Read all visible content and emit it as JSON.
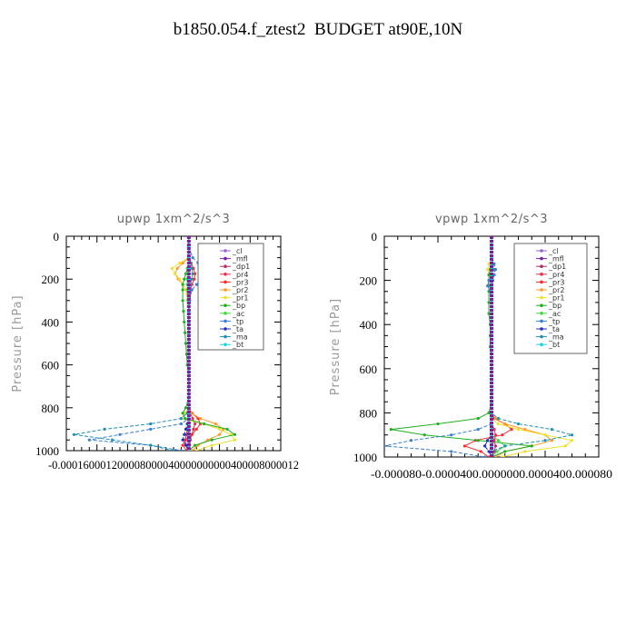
{
  "title": "b1850.054.f_ztest2  BUDGET at90E,10N",
  "legend_entries": [
    "_cl",
    "_mfl",
    "_dp1",
    "_pr4",
    "_pr3",
    "_pr2",
    "_pr1",
    "_bp",
    "_ac",
    "_tp",
    "_ta",
    "_ma",
    "_bt"
  ],
  "colors": {
    "_cl": "#9966cc",
    "_mfl": "#7a1fa2",
    "_dp1": "#b0306a",
    "_pr4": "#e8304a",
    "_pr3": "#ff2a2a",
    "_pr2": "#ff9a2a",
    "_pr1": "#f0e030",
    "_bp": "#20b020",
    "_ac": "#40d840",
    "_tp": "#3a7fd0",
    "_ta": "#2030c0",
    "_ma": "#2090b0",
    "_bt": "#20d0e0"
  },
  "chart_data": [
    {
      "type": "line",
      "title": "upwp   1xm^2/s^3",
      "ylabel": "Pressure  [hPa]",
      "ylim": [
        1000,
        0
      ],
      "xlim": [
        -0.00016,
        0.00012
      ],
      "xtick_labels": [
        "-0.00016",
        "-0.00012",
        "-0.00008",
        "-0.00004",
        "0.00000",
        "0.00004",
        "0.00008",
        "0.00012"
      ],
      "xtick_text": "-0.000160001200008000040000000000400008000012",
      "ytick_labels": [
        "0",
        "200",
        "400",
        "600",
        "800",
        "1000"
      ],
      "y": [
        0,
        50,
        100,
        125,
        150,
        175,
        200,
        225,
        250,
        300,
        350,
        400,
        450,
        500,
        550,
        600,
        650,
        700,
        750,
        800,
        825,
        850,
        875,
        900,
        925,
        950,
        975,
        1000
      ],
      "series": [
        {
          "name": "_cl",
          "values": [
            0,
            0,
            0,
            0,
            0,
            0,
            0,
            0,
            0,
            0,
            0,
            0,
            0,
            0,
            0,
            0,
            0,
            0,
            0,
            0,
            0,
            0,
            0,
            0,
            0,
            0,
            0,
            0
          ]
        },
        {
          "name": "_mfl",
          "values": [
            0,
            0,
            0,
            0,
            0,
            0,
            0,
            0,
            0,
            0,
            0,
            0,
            0,
            0,
            0,
            0,
            0,
            0,
            0,
            0,
            0,
            0,
            0,
            0,
            -1e-06,
            -1e-06,
            0,
            0
          ]
        },
        {
          "name": "_dp1",
          "values": [
            0,
            0,
            0,
            0,
            0,
            0,
            0,
            0,
            0,
            0,
            0,
            0,
            0,
            0,
            0,
            0,
            0,
            0,
            0,
            0,
            0,
            0,
            0,
            -2e-06,
            -3e-06,
            -5e-06,
            -3e-06,
            0
          ]
        },
        {
          "name": "_pr4",
          "values": [
            0,
            0,
            0,
            0,
            0,
            0,
            0,
            0,
            0,
            0,
            0,
            0,
            0,
            0,
            0,
            0,
            0,
            0,
            0,
            0,
            2e-06,
            5e-06,
            8e-06,
            6e-06,
            4e-06,
            2e-06,
            1e-06,
            0
          ]
        },
        {
          "name": "_pr3",
          "values": [
            0,
            0,
            0,
            3e-06,
            6e-06,
            8e-06,
            7e-06,
            4e-06,
            2e-06,
            1e-06,
            0,
            0,
            0,
            0,
            0,
            0,
            0,
            0,
            0,
            0,
            4e-06,
            1.2e-05,
            1.5e-05,
            1e-05,
            4e-06,
            -5e-06,
            -8e-06,
            -3e-06
          ]
        },
        {
          "name": "_pr2",
          "values": [
            0,
            0,
            0,
            -8e-06,
            -1.5e-05,
            -1.8e-05,
            -1.4e-05,
            -8e-06,
            -4e-06,
            -1e-06,
            0,
            0,
            0,
            0,
            0,
            0,
            0,
            0,
            0,
            0,
            3e-06,
            1.5e-05,
            3.5e-05,
            4.5e-05,
            4e-05,
            2.5e-05,
            1.2e-05,
            4e-06
          ]
        },
        {
          "name": "_pr1",
          "values": [
            0,
            0,
            0,
            -1.2e-05,
            -2.2e-05,
            -1.8e-05,
            -1.2e-05,
            -8e-06,
            -4e-06,
            -2e-06,
            0,
            0,
            0,
            0,
            0,
            0,
            0,
            0,
            0,
            0,
            -5e-06,
            -1e-05,
            2e-05,
            4e-05,
            5.5e-05,
            6e-05,
            3e-05,
            1e-05
          ]
        },
        {
          "name": "_bp",
          "values": [
            0,
            0,
            0,
            0,
            -2e-06,
            -4e-06,
            -6e-06,
            -8e-06,
            -8e-06,
            -8e-06,
            -7e-06,
            -6e-06,
            -5e-06,
            -4e-06,
            -3e-06,
            -2e-06,
            0,
            0,
            0,
            -4e-06,
            -8e-06,
            -5e-06,
            2e-05,
            5e-05,
            6e-05,
            3e-05,
            8e-06,
            0
          ]
        },
        {
          "name": "_ac",
          "values": [
            0,
            0,
            0,
            0,
            -2e-06,
            -2e-06,
            -2e-06,
            -2e-06,
            -2e-06,
            -1e-06,
            0,
            0,
            0,
            0,
            0,
            0,
            0,
            0,
            0,
            0,
            0,
            0,
            0,
            0,
            0,
            0,
            0,
            0
          ]
        },
        {
          "name": "_tp",
          "values": [
            0,
            0,
            5e-06,
            1.2e-05,
            1.8e-05,
            2.2e-05,
            1.8e-05,
            1e-05,
            4e-06,
            1e-06,
            0,
            0,
            0,
            0,
            0,
            0,
            0,
            0,
            0,
            0,
            0,
            0,
            -1e-05,
            -5e-05,
            -9e-05,
            -0.00013,
            -5e-05,
            -1e-05
          ]
        },
        {
          "name": "_ta",
          "values": [
            0,
            0,
            0,
            0,
            0,
            0,
            0,
            0,
            0,
            0,
            0,
            0,
            0,
            0,
            0,
            0,
            0,
            0,
            0,
            0,
            0,
            0,
            -2e-06,
            -4e-06,
            -6e-06,
            -8e-06,
            -4e-06,
            -1e-06
          ]
        },
        {
          "name": "_ma",
          "values": [
            0,
            0,
            0,
            2e-06,
            4e-06,
            5e-06,
            4e-06,
            2e-06,
            0,
            0,
            0,
            0,
            0,
            0,
            0,
            0,
            0,
            0,
            0,
            0,
            -2e-06,
            -1e-05,
            -5e-05,
            -0.00011,
            -0.00015,
            -0.0001,
            -5e-05,
            -2e-05
          ]
        },
        {
          "name": "_bt",
          "values": [
            0,
            0,
            0,
            0,
            0,
            0,
            0,
            0,
            0,
            0,
            0,
            0,
            0,
            0,
            0,
            0,
            0,
            0,
            0,
            0,
            0,
            0,
            0,
            0,
            0,
            0,
            0,
            0
          ]
        }
      ]
    },
    {
      "type": "line",
      "title": "vpwp   1xm^2/s^3",
      "ylabel": "Pressure  [hPa]",
      "ylim": [
        1000,
        0
      ],
      "xlim": [
        -8e-05,
        8e-05
      ],
      "xtick_labels": [
        "-0.000080",
        "-0.000040",
        "0.000000",
        "0.000040",
        "0.000080"
      ],
      "xtick_text": "-0.000080-0.0000400.0000000.0000400.000080",
      "ytick_labels": [
        "0",
        "200",
        "400",
        "600",
        "800",
        "1000"
      ],
      "y": [
        0,
        50,
        100,
        125,
        150,
        175,
        200,
        225,
        250,
        300,
        350,
        400,
        450,
        500,
        550,
        600,
        650,
        700,
        750,
        800,
        825,
        850,
        875,
        900,
        925,
        950,
        975,
        1000
      ],
      "series": [
        {
          "name": "_cl",
          "values": [
            0,
            0,
            0,
            0,
            0,
            0,
            0,
            0,
            0,
            0,
            0,
            0,
            0,
            0,
            0,
            0,
            0,
            0,
            0,
            0,
            0,
            0,
            0,
            0,
            0,
            0,
            0,
            0
          ]
        },
        {
          "name": "_mfl",
          "values": [
            0,
            0,
            0,
            0,
            0,
            0,
            0,
            0,
            0,
            0,
            0,
            0,
            0,
            0,
            0,
            0,
            0,
            0,
            0,
            0,
            0,
            0,
            0,
            0,
            0,
            0,
            0,
            0
          ]
        },
        {
          "name": "_dp1",
          "values": [
            0,
            0,
            0,
            0,
            0,
            0,
            0,
            0,
            0,
            0,
            0,
            0,
            0,
            0,
            0,
            0,
            0,
            0,
            0,
            0,
            0,
            0,
            0,
            0,
            2e-06,
            3e-06,
            2e-06,
            0
          ]
        },
        {
          "name": "_pr4",
          "values": [
            0,
            0,
            0,
            0,
            0,
            0,
            0,
            0,
            0,
            0,
            0,
            0,
            0,
            0,
            0,
            0,
            0,
            0,
            0,
            0,
            0,
            0,
            2e-06,
            3e-06,
            2e-06,
            0,
            0,
            0
          ]
        },
        {
          "name": "_pr3",
          "values": [
            0,
            0,
            0,
            0,
            0,
            0,
            0,
            0,
            0,
            0,
            0,
            0,
            0,
            0,
            0,
            0,
            0,
            0,
            0,
            0,
            2e-06,
            1e-05,
            1.5e-05,
            8e-06,
            -1.2e-05,
            -2e-05,
            -8e-06,
            -2e-06
          ]
        },
        {
          "name": "_pr2",
          "values": [
            0,
            0,
            0,
            0,
            0,
            0,
            0,
            0,
            0,
            0,
            0,
            0,
            0,
            0,
            0,
            0,
            0,
            0,
            0,
            0,
            3e-06,
            1e-05,
            2.5e-05,
            4e-05,
            4.5e-05,
            3e-05,
            1e-05,
            3e-06
          ]
        },
        {
          "name": "_pr1",
          "values": [
            0,
            0,
            0,
            -2e-06,
            -3e-06,
            -2e-06,
            0,
            0,
            0,
            0,
            0,
            0,
            0,
            0,
            0,
            0,
            0,
            0,
            0,
            0,
            0,
            5e-06,
            2e-05,
            4e-05,
            6e-05,
            5.5e-05,
            2.5e-05,
            8e-06
          ]
        },
        {
          "name": "_bp",
          "values": [
            0,
            0,
            0,
            0,
            -1e-06,
            -2e-06,
            -2e-06,
            -2e-06,
            -2e-06,
            -2e-06,
            -2e-06,
            -1e-06,
            -1e-06,
            -1e-06,
            0,
            0,
            0,
            0,
            0,
            -2e-06,
            -1e-05,
            -4e-05,
            -7.5e-05,
            -5e-05,
            -1e-05,
            3e-05,
            1e-05,
            0
          ]
        },
        {
          "name": "_ac",
          "values": [
            0,
            0,
            0,
            0,
            0,
            0,
            0,
            0,
            0,
            0,
            0,
            0,
            0,
            0,
            0,
            0,
            0,
            0,
            0,
            0,
            0,
            0,
            0,
            0,
            5e-06,
            1e-05,
            4e-06,
            0
          ]
        },
        {
          "name": "_tp",
          "values": [
            0,
            0,
            0,
            2e-06,
            3e-06,
            2e-06,
            -2e-06,
            -3e-06,
            -1e-06,
            0,
            0,
            0,
            0,
            0,
            0,
            0,
            0,
            0,
            0,
            0,
            0,
            0,
            -1e-05,
            -3e-05,
            -6e-05,
            -8e-05,
            -3e-05,
            -5e-06
          ]
        },
        {
          "name": "_ta",
          "values": [
            0,
            0,
            0,
            0,
            0,
            0,
            0,
            0,
            0,
            0,
            0,
            0,
            0,
            0,
            0,
            0,
            0,
            0,
            0,
            0,
            0,
            0,
            0,
            0,
            -3e-06,
            -5e-06,
            -2e-06,
            0
          ]
        },
        {
          "name": "_ma",
          "values": [
            0,
            0,
            0,
            1e-06,
            2e-06,
            2e-06,
            1e-06,
            0,
            0,
            0,
            0,
            0,
            0,
            0,
            0,
            0,
            0,
            0,
            0,
            0,
            5e-06,
            2e-05,
            4.5e-05,
            6e-05,
            4e-05,
            1e-05,
            0,
            0
          ]
        },
        {
          "name": "_bt",
          "values": [
            0,
            0,
            0,
            0,
            0,
            0,
            0,
            0,
            0,
            0,
            0,
            0,
            0,
            0,
            0,
            0,
            0,
            0,
            0,
            0,
            0,
            0,
            0,
            0,
            0,
            0,
            0,
            0
          ]
        }
      ]
    }
  ]
}
